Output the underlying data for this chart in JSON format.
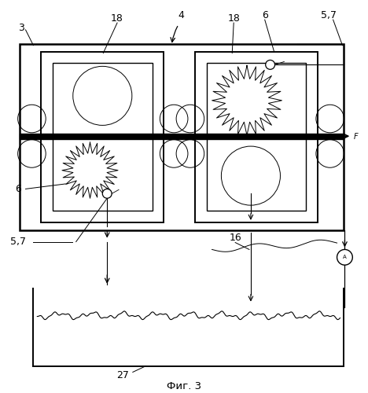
{
  "bg_color": "#ffffff",
  "line_color": "#000000",
  "title": "Фиг. 3"
}
